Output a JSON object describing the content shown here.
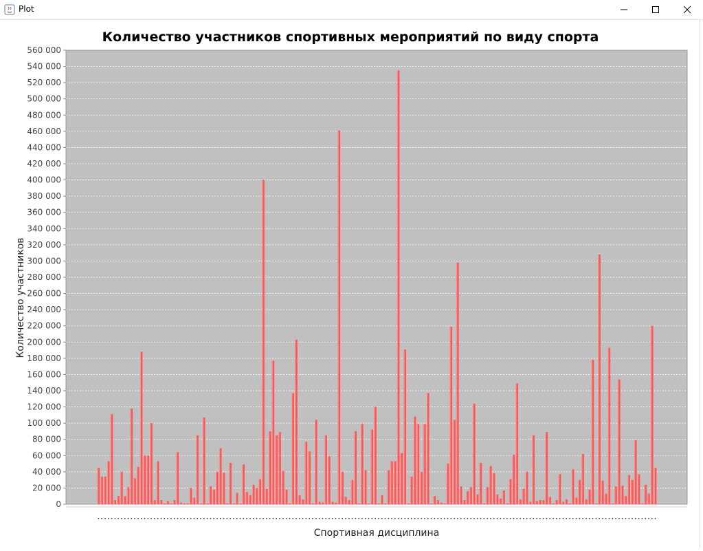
{
  "window": {
    "title": "Plot",
    "icon": "java-coffee-icon",
    "controls": [
      "minimize-icon",
      "maximize-icon",
      "close-icon"
    ]
  },
  "chart_data": {
    "type": "bar",
    "title": "Количество участников спортивных мероприятий по виду спорта",
    "xlabel": "Спортивная дисциплина",
    "ylabel": "Количество участников",
    "ylim": [
      0,
      560000
    ],
    "y_tick_step": 20000,
    "y_tick_format": "thousands-space",
    "grid": true,
    "legend": "none",
    "colors": {
      "plot_background": "#c0c0c0",
      "bar": "#ff5555",
      "bar_highlight": "#ff8c8c",
      "gridline": "#ffffff",
      "axis_text": "#444444"
    },
    "values": [
      45000,
      34000,
      34000,
      53000,
      111000,
      5000,
      10000,
      40000,
      10000,
      21000,
      118000,
      32000,
      46000,
      188000,
      60000,
      60000,
      100000,
      5000,
      53000,
      5000,
      1000,
      4000,
      1000,
      5000,
      64000,
      2000,
      1000,
      1000,
      20000,
      8000,
      85000,
      1000,
      107000,
      1000,
      22000,
      18000,
      40000,
      69000,
      39000,
      1000,
      51000,
      1000,
      14000,
      1000,
      49000,
      15000,
      11000,
      24000,
      20000,
      31000,
      400000,
      19000,
      90000,
      177000,
      85000,
      89000,
      41000,
      18000,
      1000,
      137000,
      203000,
      11000,
      6000,
      77000,
      65000,
      1000,
      104000,
      3000,
      2000,
      85000,
      59000,
      3000,
      2000,
      461000,
      40000,
      9000,
      5000,
      30000,
      90000,
      1000,
      99000,
      42000,
      1000,
      92000,
      120000,
      1000,
      11000,
      1000,
      42000,
      53000,
      53000,
      535000,
      63000,
      191000,
      1000,
      34000,
      108000,
      99000,
      40000,
      99000,
      137000,
      1000,
      10000,
      5000,
      2000,
      1000,
      50000,
      219000,
      104000,
      298000,
      22000,
      5000,
      16000,
      21000,
      124000,
      12000,
      51000,
      1000,
      21000,
      47000,
      38000,
      12000,
      7000,
      17000,
      1000,
      31000,
      61000,
      149000,
      6000,
      19000,
      40000,
      3000,
      85000,
      4000,
      5000,
      5000,
      89000,
      9000,
      1000,
      5000,
      37000,
      3000,
      6000,
      1000,
      43000,
      8000,
      30000,
      62000,
      6000,
      18000,
      178000,
      1000,
      308000,
      29000,
      13000,
      193000,
      1000,
      22000,
      154000,
      23000,
      10000,
      36000,
      30000,
      79000,
      37000,
      1000,
      24000,
      13000,
      220000,
      45000
    ]
  }
}
